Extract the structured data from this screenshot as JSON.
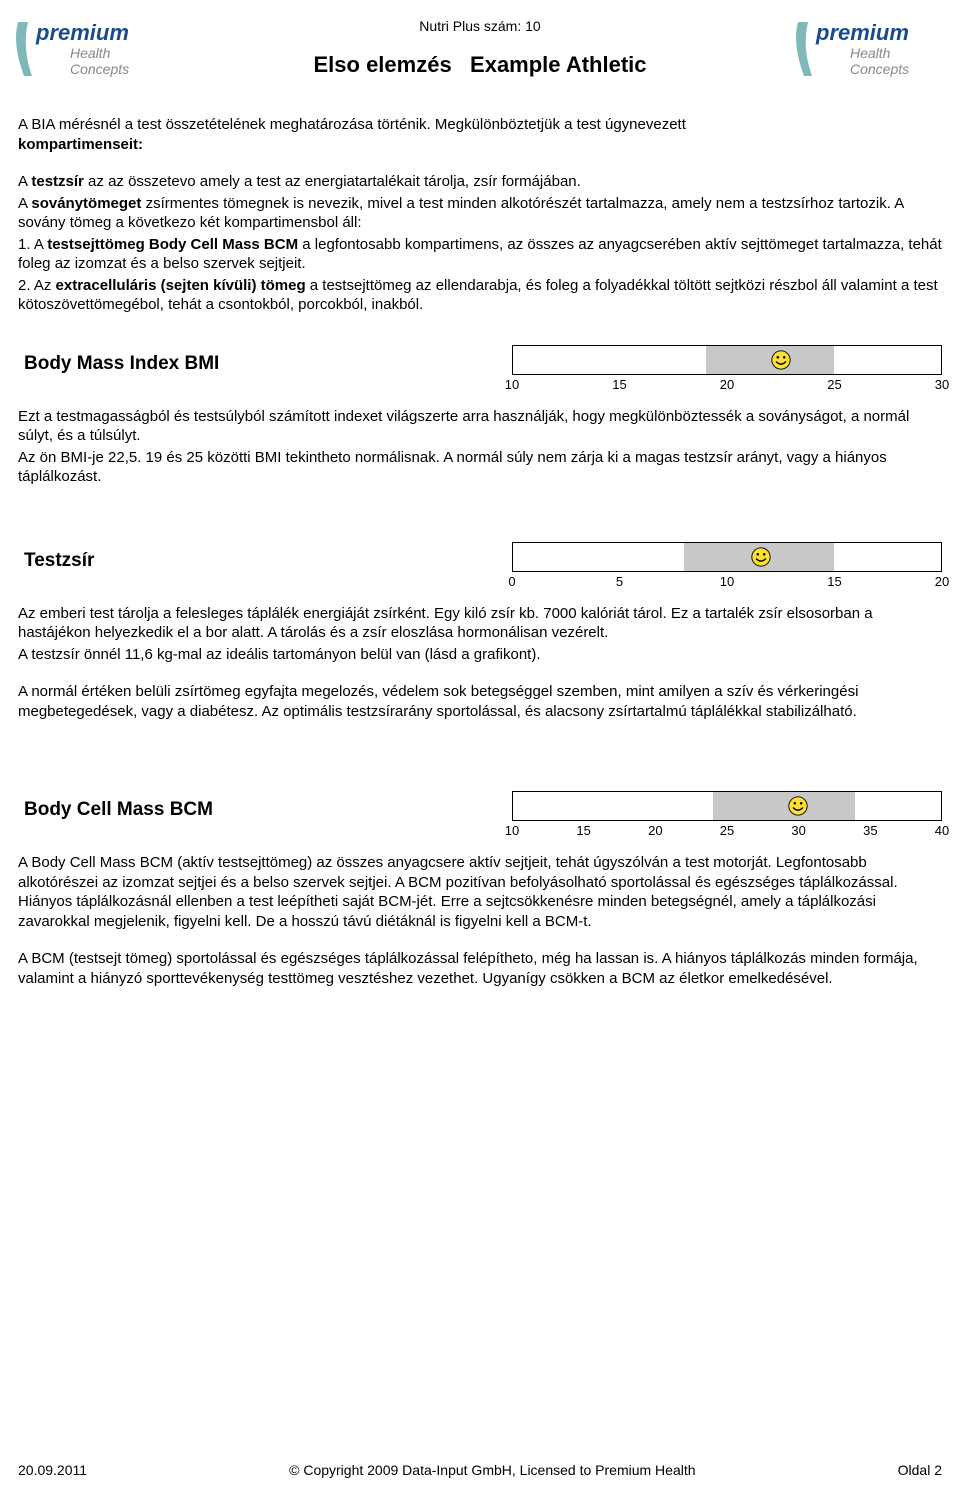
{
  "header": {
    "nutri_label": "Nutri Plus szám:",
    "nutri_value": "10",
    "title_prefix": "Elso elemzés",
    "title_name": "Example Athletic",
    "logo_main": "premium",
    "logo_sub1": "Health",
    "logo_sub2": "Concepts",
    "logo_colors": {
      "main": "#1a4b8c",
      "sub": "#888888",
      "swoosh": "#7fb8b8"
    }
  },
  "intro": {
    "p1a": "A BIA mérésnél a test összetételének meghatározása történik. Megkülönböztetjük a test úgynevezett ",
    "p1b_bold": "kompartimenseit:",
    "p2a": "A ",
    "p2b_bold": "testzsír",
    "p2c": " az az összetevo amely a test az energiatartalékait tárolja, zsír formájában.",
    "p3a": "A ",
    "p3b_bold": "soványtömeget",
    "p3c": " zsírmentes tömegnek is nevezik, mivel a test minden alkotórészét tartalmazza, amely nem a testzsírhoz tartozik. A sovány tömeg a következo két kompartimensbol áll:",
    "p4a": "1. A ",
    "p4b_bold": "testsejttömeg   Body Cell Mass BCM",
    "p4c": " a legfontosabb kompartimens, az összes az anyagcserében aktív sejttömeget tartalmazza, tehát foleg az izomzat és a belso szervek sejtjeit.",
    "p5a": "2. Az  ",
    "p5b_bold": "extracelluláris (sejten kívüli) tömeg",
    "p5c": " a testsejttömeg az ellendarabja, és foleg a folyadékkal töltött sejtközi részbol áll valamint a test kötoszövettömegébol, tehát a csontokból, porcokból, inakból."
  },
  "sections": [
    {
      "title": "Body Mass Index BMI",
      "gauge": {
        "min": 10,
        "max": 30,
        "ticks": [
          10,
          15,
          20,
          25,
          30
        ],
        "shade_from": 19,
        "shade_to": 25,
        "marker_at": 22.5,
        "bar_bg": "#ffffff",
        "shade_color": "#c8c8c8",
        "border": "#000000"
      },
      "body": [
        "Ezt a testmagasságból és testsúlyból számított indexet világszerte arra használják, hogy megkülönböztessék a soványságot, a normál súlyt, és a túlsúlyt.",
        "Az ön BMI-je 22,5. 19 és 25 közötti BMI tekintheto normálisnak. A normál súly nem zárja ki a magas testzsír arányt, vagy a hiányos táplálkozást."
      ]
    },
    {
      "title": "Testzsír",
      "gauge": {
        "min": 0,
        "max": 20,
        "ticks": [
          0,
          5,
          10,
          15,
          20
        ],
        "shade_from": 8,
        "shade_to": 15,
        "marker_at": 11.6,
        "bar_bg": "#ffffff",
        "shade_color": "#c8c8c8",
        "border": "#000000"
      },
      "body": [
        "Az emberi test tárolja a felesleges táplálék energiáját zsírként. Egy kiló zsír kb. 7000 kalóriát tárol. Ez a tartalék zsír elsosorban a hastájékon helyezkedik el a bor alatt. A tárolás és a zsír eloszlása hormonálisan vezérelt.",
        "A testzsír önnél 11,6 kg-mal az ideális tartományon belül van (lásd a grafikont).",
        "",
        "A normál értéken belüli zsírtömeg egyfajta megelozés, védelem sok betegséggel szemben, mint amilyen a szív és vérkeringési megbetegedések, vagy a diabétesz. Az optimális testzsírarány sportolással, és alacsony zsírtartalmú táplálékkal stabilizálható."
      ]
    },
    {
      "title": "Body Cell Mass BCM",
      "gauge": {
        "min": 10,
        "max": 40,
        "ticks": [
          10,
          15,
          20,
          25,
          30,
          35,
          40
        ],
        "shade_from": 24,
        "shade_to": 34,
        "marker_at": 30,
        "bar_bg": "#ffffff",
        "shade_color": "#c8c8c8",
        "border": "#000000"
      },
      "body": [
        "A Body Cell Mass BCM (aktív testsejttömeg) az összes anyagcsere aktív sejtjeit, tehát úgyszólván a test motorját. Legfontosabb alkotórészei az izomzat sejtjei és a belso szervek sejtjei. A BCM pozitívan befolyásolható sportolással és egészséges táplálkozással. Hiányos táplálkozásnál ellenben a test leépítheti saját BCM-jét. Erre a sejtcsökkenésre minden betegségnél, amely a táplálkozási zavarokkal megjelenik, figyelni kell. De a hosszú távú diétáknál is figyelni kell a BCM-t.",
        "",
        "A BCM (testsejt tömeg) sportolással és egészséges táplálkozással felépítheto, még ha lassan is. A hiányos táplálkozás minden formája, valamint a hiányzó sporttevékenység testtömeg vesztéshez vezethet. Ugyanígy csökken a BCM az életkor emelkedésével."
      ]
    }
  ],
  "footer": {
    "date": "20.09.2011",
    "copyright": "© Copyright 2009 Data-Input GmbH, Licensed to Premium Health",
    "page_label": "Oldal",
    "page_num": "2"
  }
}
